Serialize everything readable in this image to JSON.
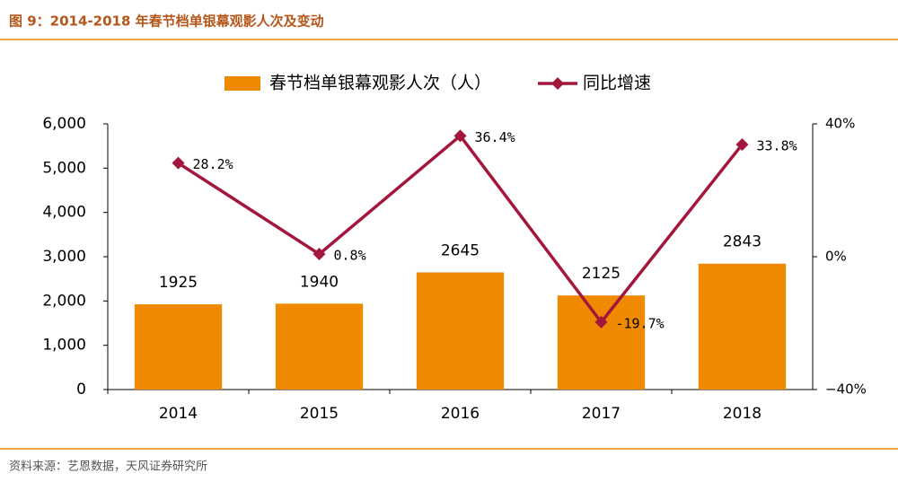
{
  "header": {
    "title": "图 9：2014-2018 年春节档单银幕观影人次及变动"
  },
  "chart_data": {
    "type": "bar",
    "categories": [
      "2014",
      "2015",
      "2016",
      "2017",
      "2018"
    ],
    "series": [
      {
        "name": "春节档单银幕观影人次（人）",
        "type": "bar",
        "color": "#ef8a00",
        "values": [
          1925,
          1940,
          2645,
          2125,
          2843
        ]
      },
      {
        "name": "同比增速",
        "type": "line",
        "axis": "y2",
        "color": "#a3173c",
        "values": [
          28.2,
          0.8,
          36.4,
          -19.7,
          33.8
        ],
        "value_labels": [
          "28.2%",
          "0.8%",
          "36.4%",
          "-19.7%",
          "33.8%"
        ]
      }
    ],
    "ylim": [
      0,
      6000
    ],
    "yticks": [
      0,
      {
        "value": 1000,
        "label": "1,000"
      },
      {
        "value": 2000,
        "label": "2,000"
      },
      {
        "value": 3000,
        "label": "3,000"
      },
      {
        "value": 4000,
        "label": "4,000"
      },
      {
        "value": 5000,
        "label": "5,000"
      },
      {
        "value": 6000,
        "label": "6,000"
      }
    ],
    "y2lim": [
      -40,
      40
    ],
    "y2ticks": [
      {
        "value": -40,
        "label": "−40%"
      },
      {
        "value": 0,
        "label": "0%"
      },
      {
        "value": 40,
        "label": "40%"
      }
    ],
    "legend": "top",
    "grid": false
  },
  "footer": {
    "source": "资料来源：艺恩数据，天风证券研究所"
  }
}
